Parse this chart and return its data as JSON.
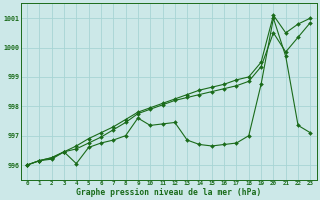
{
  "title": "",
  "xlabel": "Graphe pression niveau de la mer (hPa)",
  "ylabel": "",
  "bg_color": "#cce8e8",
  "line_color": "#1a6b1a",
  "grid_color": "#a8d4d4",
  "xlim": [
    -0.5,
    23.5
  ],
  "ylim": [
    995.5,
    1001.5
  ],
  "yticks": [
    996,
    997,
    998,
    999,
    1000,
    1001
  ],
  "xticks": [
    0,
    1,
    2,
    3,
    4,
    5,
    6,
    7,
    8,
    9,
    10,
    11,
    12,
    13,
    14,
    15,
    16,
    17,
    18,
    19,
    20,
    21,
    22,
    23
  ],
  "series1": [
    996.0,
    996.15,
    996.25,
    996.45,
    996.65,
    996.9,
    997.1,
    997.3,
    997.55,
    997.8,
    997.95,
    998.1,
    998.25,
    998.4,
    998.55,
    998.65,
    998.75,
    998.9,
    999.0,
    999.5,
    1001.1,
    1000.5,
    1000.8,
    1001.0
  ],
  "series2": [
    996.0,
    996.15,
    996.25,
    996.45,
    996.55,
    996.75,
    996.95,
    997.2,
    997.45,
    997.75,
    997.9,
    998.05,
    998.2,
    998.3,
    998.4,
    998.5,
    998.6,
    998.7,
    998.85,
    999.35,
    1000.5,
    999.85,
    1000.35,
    1000.85
  ],
  "series3": [
    996.0,
    996.15,
    996.2,
    996.45,
    996.05,
    996.6,
    996.75,
    996.85,
    997.0,
    997.6,
    997.35,
    997.4,
    997.45,
    996.85,
    996.7,
    996.65,
    996.7,
    996.75,
    997.0,
    998.75,
    1001.0,
    999.7,
    997.35,
    997.1
  ]
}
